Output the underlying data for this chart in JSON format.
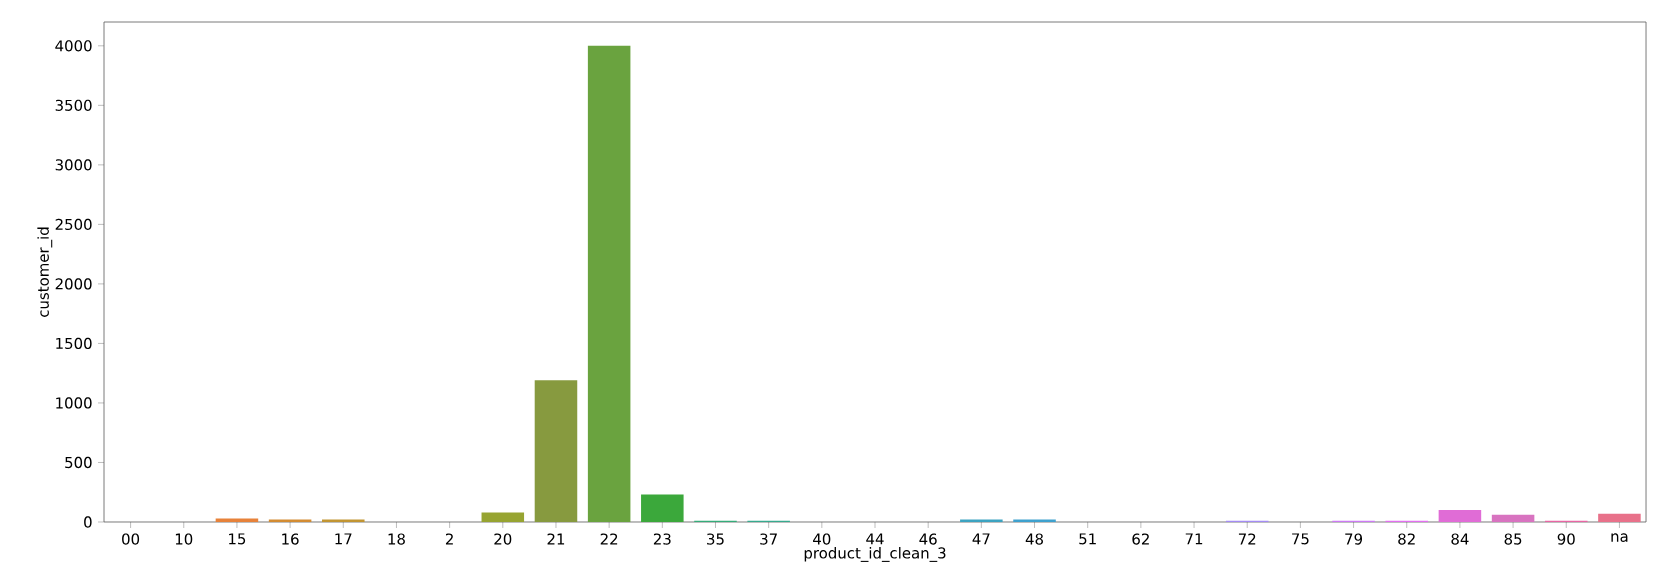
{
  "chart_data": {
    "type": "bar",
    "xlabel": "product_id_clean_3",
    "ylabel": "customer_id",
    "categories": [
      "00",
      "10",
      "15",
      "16",
      "17",
      "18",
      "2",
      "20",
      "21",
      "22",
      "23",
      "35",
      "37",
      "40",
      "44",
      "46",
      "47",
      "48",
      "51",
      "62",
      "71",
      "72",
      "75",
      "79",
      "82",
      "84",
      "85",
      "90",
      "na"
    ],
    "values": [
      0,
      0,
      30,
      20,
      20,
      0,
      0,
      80,
      1190,
      4000,
      230,
      10,
      10,
      0,
      0,
      0,
      20,
      20,
      0,
      0,
      0,
      10,
      0,
      10,
      10,
      100,
      60,
      10,
      70
    ],
    "colors": [
      "#f77189",
      "#f47a53",
      "#e7823a",
      "#d38c32",
      "#c29532",
      "#b39c31",
      "#a4a031",
      "#97a431",
      "#879a3f",
      "#6aa33f",
      "#3ba83b",
      "#35ac7a",
      "#37aa8e",
      "#38a89c",
      "#39a7a8",
      "#3aa5b4",
      "#3ca3c1",
      "#3ea1ce",
      "#4a9de2",
      "#6e98f4",
      "#8f93f4",
      "#a48cf4",
      "#b785f4",
      "#cc7af4",
      "#e26ff0",
      "#e06cd6",
      "#d873c0",
      "#e866a4",
      "#e8718a"
    ],
    "ylim": [
      0,
      4200
    ],
    "yticks": [
      0,
      500,
      1000,
      1500,
      2000,
      2500,
      3000,
      3500,
      4000
    ],
    "grid": false
  }
}
